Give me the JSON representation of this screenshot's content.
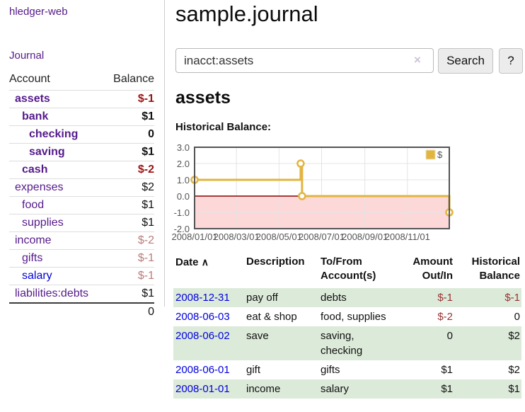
{
  "app": {
    "title": "hledger-web",
    "nav_journal": "Journal"
  },
  "sidebar": {
    "header": {
      "account": "Account",
      "balance": "Balance"
    },
    "accounts": [
      {
        "label": "assets",
        "balance": "$-1"
      },
      {
        "label": "bank",
        "balance": "$1"
      },
      {
        "label": "checking",
        "balance": "0"
      },
      {
        "label": "saving",
        "balance": "$1"
      },
      {
        "label": "cash",
        "balance": "$-2"
      },
      {
        "label": "expenses",
        "balance": "$2"
      },
      {
        "label": "food",
        "balance": "$1"
      },
      {
        "label": "supplies",
        "balance": "$1"
      },
      {
        "label": "income",
        "balance": "$-2"
      },
      {
        "label": "gifts",
        "balance": "$-1"
      },
      {
        "label": "salary",
        "balance": "$-1"
      },
      {
        "label": "liabilities:debts",
        "balance": "$1"
      }
    ],
    "total": "0"
  },
  "main": {
    "title": "sample.journal",
    "search": {
      "value": "inacct:assets",
      "clear": "×",
      "button_label": "Search",
      "help_label": "?"
    },
    "account_heading": "assets",
    "chart_label": "Historical Balance:"
  },
  "chart_data": {
    "type": "line",
    "step": true,
    "title": "Historical Balance:",
    "series": [
      {
        "name": "$",
        "points": [
          [
            "2008-01-01",
            1
          ],
          [
            "2008-06-01",
            2
          ],
          [
            "2008-06-03",
            0
          ],
          [
            "2008-12-31",
            -1
          ]
        ]
      }
    ],
    "xrange": [
      "2008-01-01",
      "2008-12-31"
    ],
    "ylim": [
      -2,
      3
    ],
    "yticks": [
      3.0,
      2.0,
      1.0,
      0.0,
      -1.0,
      -2.0
    ],
    "xticks": [
      {
        "date": "2008-01-01",
        "label": "2008/01/01"
      },
      {
        "date": "2008-03-01",
        "label": "2008/03/01"
      },
      {
        "date": "2008-05-01",
        "label": "2008/05/01"
      },
      {
        "date": "2008-07-01",
        "label": "2008/07/01"
      },
      {
        "date": "2008-09-01",
        "label": "2008/09/01"
      },
      {
        "date": "2008-11-01",
        "label": "2008/11/01"
      }
    ],
    "legend": {
      "label": "$",
      "position": "top-right"
    },
    "grid": true,
    "colors": {
      "line": "#e2b442",
      "marker_fill": "#ffffff",
      "negative_region": "#fcd8d8",
      "zero_line": "#8b0000",
      "grid": "#e4e4e4",
      "border": "#545454",
      "axis_text": "#545454"
    }
  },
  "table": {
    "headers": {
      "date": "Date",
      "sort": "∧",
      "description": "Description",
      "tofrom": "To/From\nAccount(s)",
      "amount": "Amount\nOut/In",
      "balance": "Historical\nBalance"
    },
    "rows": [
      {
        "date": "2008-12-31",
        "desc": "pay off",
        "tofrom": "debts",
        "amount": "$-1",
        "bal": "$-1"
      },
      {
        "date": "2008-06-03",
        "desc": "eat & shop",
        "tofrom": "food, supplies",
        "amount": "$-2",
        "bal": "0"
      },
      {
        "date": "2008-06-02",
        "desc": "save",
        "tofrom": "saving,\nchecking",
        "amount": "0",
        "bal": "$2"
      },
      {
        "date": "2008-06-01",
        "desc": "gift",
        "tofrom": "gifts",
        "amount": "$1",
        "bal": "$2"
      },
      {
        "date": "2008-01-01",
        "desc": "income",
        "tofrom": "salary",
        "amount": "$1",
        "bal": "$1"
      }
    ]
  },
  "colors": {
    "link_purple": "#551a8b",
    "link_blue": "#0000e0",
    "negative_bold": "#991414",
    "negative_faded": "#bb7b7b",
    "negative_table": "#993333",
    "row_stripe_green": "#dcead9",
    "chart_line_gold": "#e2b442",
    "chart_negative_pink": "#fcd8d8",
    "zero_line_red": "#8b0000",
    "button_bg": "#ececec"
  }
}
